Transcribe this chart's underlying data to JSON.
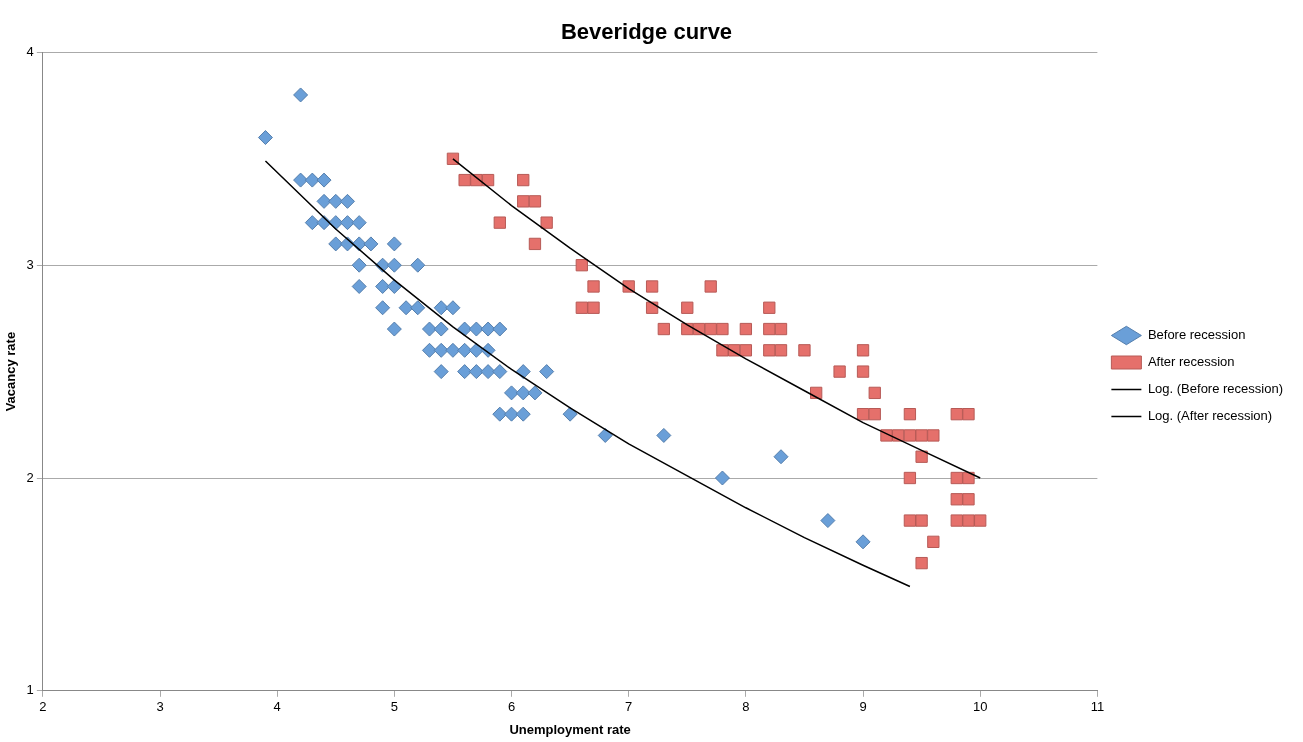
{
  "chart_data": {
    "type": "scatter",
    "title": "Beveridge curve",
    "xlabel": "Unemployment rate",
    "ylabel": "Vacancy rate",
    "xlim": [
      2,
      11
    ],
    "xticks": [
      2,
      3,
      4,
      5,
      6,
      7,
      8,
      9,
      10,
      11
    ],
    "ylim": [
      1,
      4
    ],
    "yticks": [
      1,
      2,
      3,
      4
    ],
    "grid": "y",
    "legend": "right",
    "series": [
      {
        "name": "Before recession",
        "color": "#6a9fd8",
        "marker": "diamond",
        "x": [
          3.9,
          4.2,
          4.2,
          4.3,
          4.4,
          4.3,
          4.4,
          4.4,
          4.5,
          4.6,
          4.5,
          4.6,
          4.7,
          4.5,
          4.6,
          4.7,
          4.8,
          5.0,
          4.7,
          4.9,
          5.0,
          5.2,
          4.7,
          4.9,
          5.0,
          4.9,
          5.1,
          5.2,
          5.0,
          5.4,
          5.5,
          5.3,
          5.4,
          5.6,
          5.7,
          5.8,
          5.9,
          5.3,
          5.4,
          5.5,
          5.6,
          5.7,
          5.8,
          5.4,
          5.6,
          5.7,
          5.8,
          5.9,
          6.1,
          6.3,
          6.0,
          6.1,
          6.2,
          5.9,
          6.0,
          6.1,
          6.5,
          6.8,
          7.3,
          7.8,
          8.3,
          8.7,
          9.0
        ],
        "values": [
          3.6,
          3.8,
          3.4,
          3.4,
          3.4,
          3.2,
          3.2,
          3.3,
          3.3,
          3.3,
          3.2,
          3.2,
          3.2,
          3.1,
          3.1,
          3.1,
          3.1,
          3.1,
          3.0,
          3.0,
          3.0,
          3.0,
          2.9,
          2.9,
          2.9,
          2.8,
          2.8,
          2.8,
          2.7,
          2.8,
          2.8,
          2.7,
          2.7,
          2.7,
          2.7,
          2.7,
          2.7,
          2.6,
          2.6,
          2.6,
          2.6,
          2.6,
          2.6,
          2.5,
          2.5,
          2.5,
          2.5,
          2.5,
          2.5,
          2.5,
          2.4,
          2.4,
          2.4,
          2.3,
          2.3,
          2.3,
          2.3,
          2.2,
          2.2,
          2.0,
          2.1,
          1.8,
          1.7
        ]
      },
      {
        "name": "After recession",
        "color": "#e5706b",
        "marker": "square",
        "x": [
          5.5,
          5.6,
          5.7,
          5.8,
          6.1,
          6.1,
          6.2,
          5.9,
          6.3,
          6.2,
          6.6,
          6.6,
          6.7,
          6.7,
          7.0,
          7.2,
          7.7,
          7.2,
          7.5,
          8.2,
          7.3,
          7.5,
          7.6,
          7.7,
          7.8,
          8.0,
          8.2,
          8.3,
          7.8,
          7.9,
          8.0,
          8.2,
          8.3,
          8.5,
          9.0,
          8.6,
          8.8,
          9.0,
          9.1,
          9.0,
          9.1,
          9.4,
          9.8,
          9.9,
          9.2,
          9.3,
          9.4,
          9.5,
          9.6,
          9.5,
          9.4,
          9.8,
          9.9,
          9.8,
          9.9,
          9.4,
          9.5,
          9.8,
          9.9,
          10.0,
          9.6,
          9.5
        ],
        "values": [
          3.5,
          3.4,
          3.4,
          3.4,
          3.4,
          3.3,
          3.3,
          3.2,
          3.2,
          3.1,
          3.0,
          2.8,
          2.8,
          2.9,
          2.9,
          2.9,
          2.9,
          2.8,
          2.8,
          2.8,
          2.7,
          2.7,
          2.7,
          2.7,
          2.7,
          2.7,
          2.7,
          2.7,
          2.6,
          2.6,
          2.6,
          2.6,
          2.6,
          2.6,
          2.6,
          2.4,
          2.5,
          2.5,
          2.4,
          2.3,
          2.3,
          2.3,
          2.3,
          2.3,
          2.2,
          2.2,
          2.2,
          2.2,
          2.2,
          2.1,
          2.0,
          2.0,
          2.0,
          1.9,
          1.9,
          1.8,
          1.8,
          1.8,
          1.8,
          1.8,
          1.7,
          1.6
        ]
      },
      {
        "name": "Log. (Before recession)",
        "type": "line",
        "color": "#000000",
        "marker": "none",
        "x": [
          3.9,
          4.5,
          5,
          5.5,
          6,
          6.5,
          7,
          7.5,
          8,
          8.5,
          9,
          9.4
        ],
        "values": [
          3.49,
          3.17,
          2.93,
          2.71,
          2.51,
          2.33,
          2.16,
          2.01,
          1.86,
          1.72,
          1.59,
          1.49
        ]
      },
      {
        "name": "Log. (After recession)",
        "type": "line",
        "color": "#000000",
        "marker": "none",
        "x": [
          5.5,
          6,
          6.5,
          7,
          7.5,
          8,
          8.5,
          9,
          9.5,
          10
        ],
        "values": [
          3.5,
          3.28,
          3.08,
          2.89,
          2.72,
          2.56,
          2.41,
          2.26,
          2.13,
          2.0
        ]
      }
    ]
  }
}
